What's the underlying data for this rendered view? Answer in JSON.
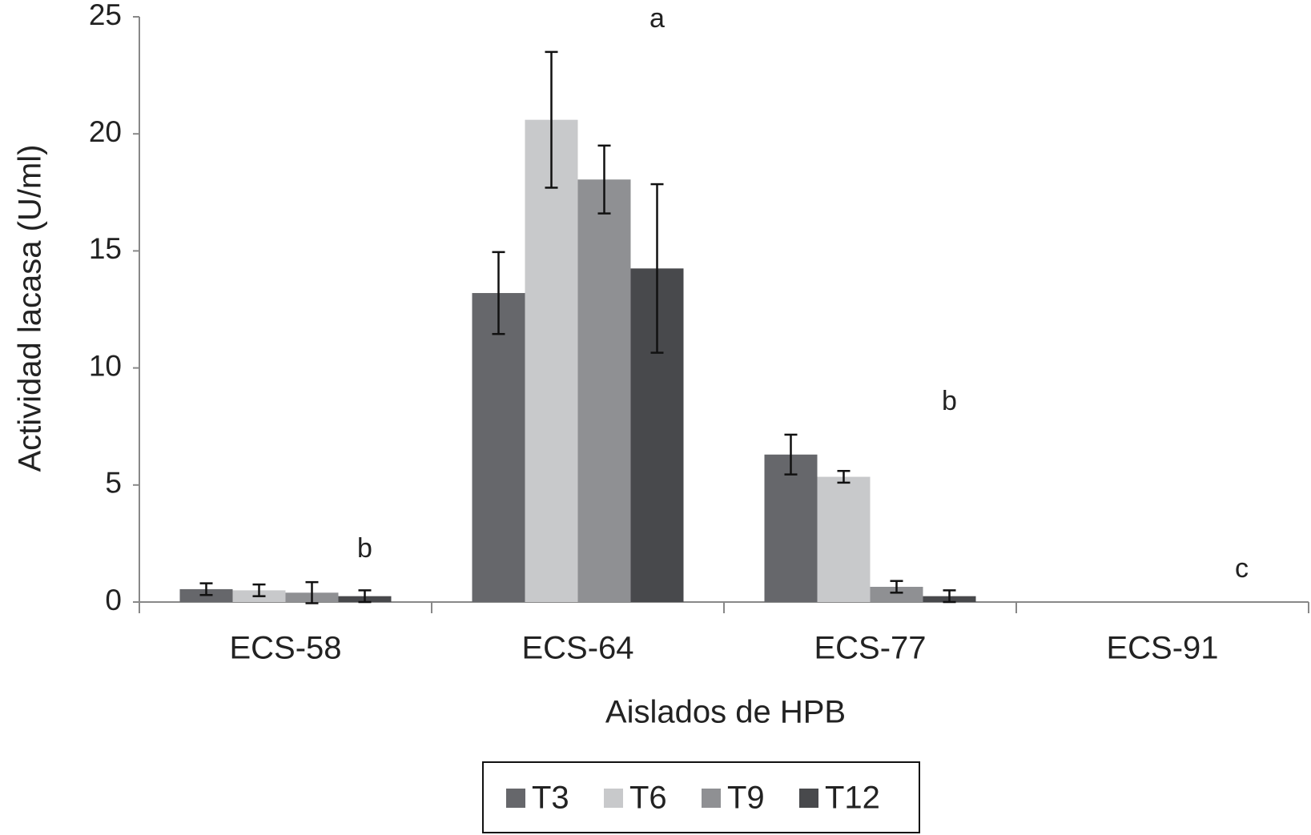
{
  "chart_data": {
    "type": "bar",
    "x_label": "Aislados de HPB",
    "y_label": "Actividad lacasa (U/ml)",
    "categories": [
      "ECS-58",
      "ECS-64",
      "ECS-77",
      "ECS-91"
    ],
    "series": [
      {
        "name": "T3",
        "color": "#66676b",
        "values": [
          0.55,
          13.2,
          6.3,
          0
        ],
        "errors": [
          0.25,
          1.75,
          0.85,
          0
        ]
      },
      {
        "name": "T6",
        "color": "#c8c9cb",
        "values": [
          0.5,
          20.6,
          5.35,
          0
        ],
        "errors": [
          0.25,
          2.9,
          0.25,
          0
        ]
      },
      {
        "name": "T9",
        "color": "#8f9093",
        "values": [
          0.4,
          18.05,
          0.65,
          0
        ],
        "errors": [
          0.45,
          1.45,
          0.25,
          0
        ]
      },
      {
        "name": "T12",
        "color": "#48494c",
        "values": [
          0.25,
          14.25,
          0.25,
          0
        ],
        "errors": [
          0.25,
          3.6,
          0.25,
          0
        ]
      }
    ],
    "annotations": [
      {
        "text": "b",
        "category": 0
      },
      {
        "text": "a",
        "category": 1
      },
      {
        "text": "b",
        "category": 2
      },
      {
        "text": "c",
        "category": 3
      }
    ],
    "ylim": [
      0,
      25
    ],
    "yticks": [
      0,
      5,
      10,
      15,
      20,
      25
    ],
    "legend": "bottom"
  }
}
